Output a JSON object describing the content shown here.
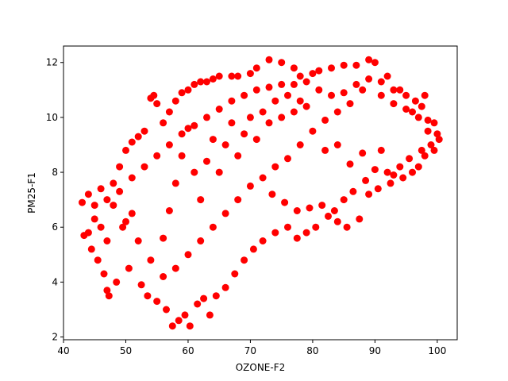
{
  "chart_data": {
    "type": "scatter",
    "xlabel": "OZONE-F2",
    "ylabel": "PM25-F1",
    "xlim": [
      40,
      103.2
    ],
    "ylim": [
      1.9,
      12.6
    ],
    "xticks": [
      40,
      50,
      60,
      70,
      80,
      90,
      100
    ],
    "yticks": [
      2,
      4,
      6,
      8,
      10,
      12
    ],
    "grid": false,
    "marker_color": "#ff0000",
    "series": [
      {
        "points": [
          [
            43.0,
            6.9
          ],
          [
            43.3,
            5.7
          ],
          [
            44.0,
            7.2
          ],
          [
            44.5,
            5.2
          ],
          [
            45.0,
            6.3
          ],
          [
            45.5,
            4.8
          ],
          [
            46.0,
            7.4
          ],
          [
            46.5,
            4.3
          ],
          [
            47.0,
            3.7
          ],
          [
            47.3,
            3.5
          ],
          [
            47.0,
            5.5
          ],
          [
            48.0,
            7.6
          ],
          [
            48.5,
            4.0
          ],
          [
            49.0,
            8.2
          ],
          [
            49.5,
            6.0
          ],
          [
            50.0,
            8.8
          ],
          [
            50.5,
            4.5
          ],
          [
            51.0,
            9.1
          ],
          [
            51.0,
            6.5
          ],
          [
            52.0,
            9.3
          ],
          [
            52.5,
            3.9
          ],
          [
            53.0,
            9.5
          ],
          [
            53.5,
            3.5
          ],
          [
            54.0,
            10.7
          ],
          [
            54.5,
            10.8
          ],
          [
            55.0,
            10.5
          ],
          [
            55.0,
            3.3
          ],
          [
            56.0,
            9.8
          ],
          [
            56.5,
            3.0
          ],
          [
            57.0,
            10.2
          ],
          [
            57.5,
            2.4
          ],
          [
            58.0,
            10.6
          ],
          [
            58.5,
            2.6
          ],
          [
            59.0,
            10.9
          ],
          [
            59.5,
            2.8
          ],
          [
            60.0,
            11.0
          ],
          [
            60.3,
            2.4
          ],
          [
            61.0,
            11.2
          ],
          [
            61.5,
            3.2
          ],
          [
            62.0,
            11.3
          ],
          [
            62.5,
            3.4
          ],
          [
            63.0,
            11.3
          ],
          [
            63.5,
            2.8
          ],
          [
            64.0,
            11.4
          ],
          [
            64.5,
            3.5
          ],
          [
            65.0,
            11.5
          ],
          [
            66.0,
            3.8
          ],
          [
            67.0,
            11.5
          ],
          [
            67.5,
            4.3
          ],
          [
            68.0,
            11.5
          ],
          [
            69.0,
            4.8
          ],
          [
            70.0,
            11.6
          ],
          [
            70.5,
            5.2
          ],
          [
            71.0,
            11.8
          ],
          [
            72.0,
            5.5
          ],
          [
            73.0,
            12.1
          ],
          [
            74.0,
            5.8
          ],
          [
            75.0,
            12.0
          ],
          [
            76.0,
            6.0
          ],
          [
            77.0,
            11.8
          ],
          [
            77.5,
            5.6
          ],
          [
            78.0,
            11.5
          ],
          [
            79.0,
            5.8
          ],
          [
            80.0,
            11.6
          ],
          [
            80.5,
            6.0
          ],
          [
            81.0,
            11.7
          ],
          [
            82.0,
            8.8
          ],
          [
            82.5,
            6.4
          ],
          [
            83.0,
            11.8
          ],
          [
            84.0,
            6.2
          ],
          [
            84.0,
            9.0
          ],
          [
            85.0,
            11.9
          ],
          [
            85.5,
            6.0
          ],
          [
            86.0,
            8.3
          ],
          [
            87.0,
            11.9
          ],
          [
            87.5,
            6.3
          ],
          [
            88.0,
            8.7
          ],
          [
            89.0,
            12.1
          ],
          [
            89.0,
            7.2
          ],
          [
            90.0,
            12.0
          ],
          [
            90.5,
            7.4
          ],
          [
            91.0,
            8.8
          ],
          [
            92.0,
            11.5
          ],
          [
            92.5,
            7.6
          ],
          [
            93.0,
            7.9
          ],
          [
            94.0,
            11.0
          ],
          [
            94.5,
            7.8
          ],
          [
            95.0,
            10.3
          ],
          [
            96.0,
            8.0
          ],
          [
            96.5,
            10.6
          ],
          [
            97.0,
            8.2
          ],
          [
            97.5,
            10.4
          ],
          [
            98.0,
            8.6
          ],
          [
            98.5,
            9.9
          ],
          [
            99.0,
            9.0
          ],
          [
            99.5,
            9.8
          ],
          [
            100.0,
            9.4
          ],
          [
            100.3,
            9.2
          ],
          [
            99.5,
            8.8
          ],
          [
            98.0,
            10.8
          ],
          [
            96.0,
            10.2
          ],
          [
            93.0,
            10.5
          ],
          [
            91.0,
            10.8
          ],
          [
            88.0,
            11.0
          ],
          [
            86.0,
            10.5
          ],
          [
            84.0,
            10.2
          ],
          [
            82.0,
            9.9
          ],
          [
            80.0,
            9.5
          ],
          [
            78.0,
            9.0
          ],
          [
            76.0,
            8.5
          ],
          [
            74.0,
            8.2
          ],
          [
            72.0,
            7.8
          ],
          [
            70.0,
            7.5
          ],
          [
            68.0,
            7.0
          ],
          [
            66.0,
            6.5
          ],
          [
            64.0,
            6.0
          ],
          [
            62.0,
            5.5
          ],
          [
            60.0,
            5.0
          ],
          [
            58.0,
            4.5
          ],
          [
            56.0,
            4.2
          ],
          [
            54.0,
            4.8
          ],
          [
            52.0,
            5.5
          ],
          [
            50.0,
            6.2
          ],
          [
            48.0,
            6.8
          ],
          [
            46.0,
            6.0
          ],
          [
            44.0,
            5.8
          ],
          [
            45.0,
            6.8
          ],
          [
            47.0,
            7.0
          ],
          [
            49.0,
            7.3
          ],
          [
            51.0,
            7.8
          ],
          [
            53.0,
            8.2
          ],
          [
            55.0,
            8.6
          ],
          [
            57.0,
            9.0
          ],
          [
            59.0,
            9.4
          ],
          [
            61.0,
            9.7
          ],
          [
            63.0,
            10.0
          ],
          [
            65.0,
            10.3
          ],
          [
            67.0,
            10.6
          ],
          [
            69.0,
            10.8
          ],
          [
            71.0,
            11.0
          ],
          [
            73.0,
            11.1
          ],
          [
            75.0,
            11.2
          ],
          [
            77.0,
            11.2
          ],
          [
            79.0,
            11.3
          ],
          [
            81.0,
            11.0
          ],
          [
            83.0,
            10.8
          ],
          [
            85.0,
            10.9
          ],
          [
            87.0,
            11.2
          ],
          [
            89.0,
            11.4
          ],
          [
            91.0,
            11.3
          ],
          [
            93.0,
            11.0
          ],
          [
            95.0,
            10.8
          ],
          [
            97.0,
            10.0
          ],
          [
            98.5,
            9.5
          ],
          [
            97.5,
            8.8
          ],
          [
            95.5,
            8.5
          ],
          [
            94.0,
            8.2
          ],
          [
            92.0,
            8.0
          ],
          [
            90.0,
            8.1
          ],
          [
            88.5,
            7.7
          ],
          [
            86.5,
            7.3
          ],
          [
            85.0,
            7.0
          ],
          [
            83.5,
            6.6
          ],
          [
            81.5,
            6.8
          ],
          [
            79.5,
            6.7
          ],
          [
            77.5,
            6.6
          ],
          [
            75.5,
            6.9
          ],
          [
            73.5,
            7.2
          ],
          [
            56.0,
            5.6
          ],
          [
            57.0,
            6.6
          ],
          [
            58.0,
            7.6
          ],
          [
            59.0,
            8.6
          ],
          [
            60.0,
            9.6
          ],
          [
            61.0,
            8.0
          ],
          [
            62.0,
            7.0
          ],
          [
            63.0,
            8.4
          ],
          [
            64.0,
            9.2
          ],
          [
            65.0,
            8.0
          ],
          [
            66.0,
            9.0
          ],
          [
            67.0,
            9.8
          ],
          [
            68.0,
            8.6
          ],
          [
            69.0,
            9.4
          ],
          [
            70.0,
            10.0
          ],
          [
            71.0,
            9.2
          ],
          [
            72.0,
            10.2
          ],
          [
            73.0,
            9.8
          ],
          [
            74.0,
            10.6
          ],
          [
            75.0,
            10.0
          ],
          [
            76.0,
            10.8
          ],
          [
            77.0,
            10.2
          ],
          [
            78.0,
            10.6
          ],
          [
            79.0,
            10.4
          ]
        ]
      }
    ]
  }
}
